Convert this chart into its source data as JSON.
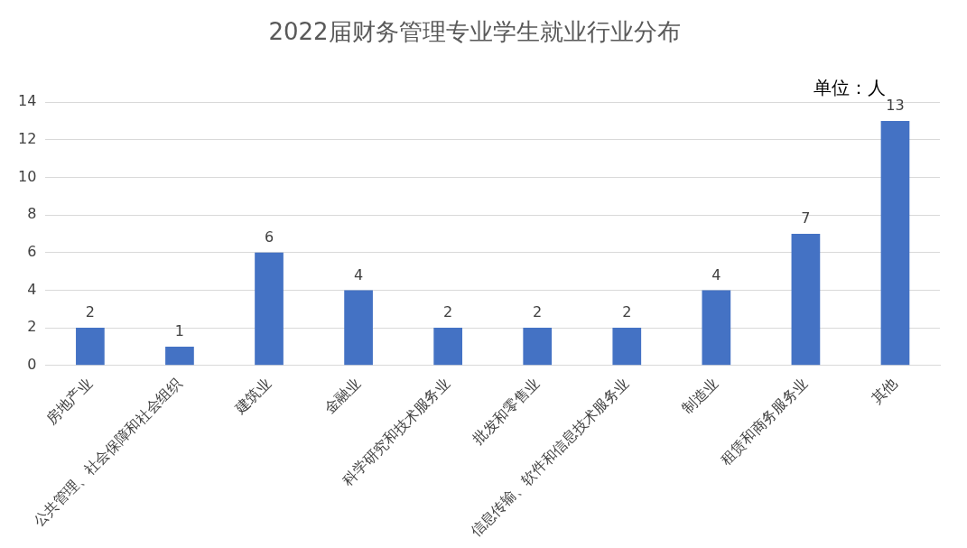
{
  "chart_data": {
    "type": "bar",
    "title": "2022届财务管理专业学生就业行业分布",
    "categories": [
      "房地产业",
      "公共管理、社会保障和社会组织",
      "建筑业",
      "金融业",
      "科学研究和技术服务业",
      "批发和零售业",
      "信息传输、软件和信息技术服务业",
      "制造业",
      "租赁和商务服务业",
      "其他"
    ],
    "values": [
      2,
      1,
      6,
      4,
      2,
      2,
      2,
      4,
      7,
      13
    ],
    "color": "#4472c4",
    "ylim": [
      0,
      14
    ],
    "yticks": [
      0,
      2,
      4,
      6,
      8,
      10,
      12,
      14
    ],
    "grid": "y",
    "data_labels": true,
    "legend": false,
    "annotations": [
      "单位：人"
    ]
  }
}
